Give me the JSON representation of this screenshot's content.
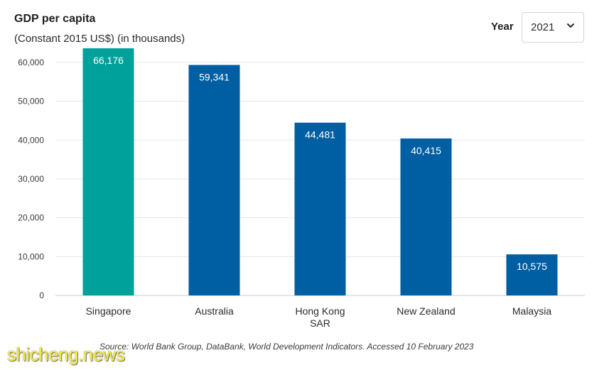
{
  "header": {
    "title": "GDP per capita",
    "subtitle": "(Constant 2015 US$) (in thousands)"
  },
  "year_filter": {
    "label": "Year",
    "selected": "2021"
  },
  "chart_data": {
    "type": "bar",
    "title": "GDP per capita",
    "subtitle": "(Constant 2015 US$) (in thousands)",
    "categories": [
      "Singapore",
      "Australia",
      "Hong Kong SAR",
      "New Zealand",
      "Malaysia"
    ],
    "category_lines": [
      [
        "Singapore"
      ],
      [
        "Australia"
      ],
      [
        "Hong Kong",
        "SAR"
      ],
      [
        "New Zealand"
      ],
      [
        "Malaysia"
      ]
    ],
    "values": [
      66176,
      59341,
      44481,
      40415,
      10575
    ],
    "value_labels": [
      "66,176",
      "59,341",
      "44,481",
      "40,415",
      "10,575"
    ],
    "bar_colors": [
      "#00a19a",
      "#005ea2",
      "#005ea2",
      "#005ea2",
      "#005ea2"
    ],
    "ylim": [
      0,
      64000
    ],
    "yticks": [
      0,
      10000,
      20000,
      30000,
      40000,
      50000,
      60000
    ],
    "ytick_labels": [
      "0",
      "10,000",
      "20,000",
      "30,000",
      "40,000",
      "50,000",
      "60,000"
    ],
    "grid": true,
    "xlabel": "",
    "ylabel": ""
  },
  "footer": {
    "source": "Source: World Bank Group, DataBank, World Development Indicators. Accessed 10 February 2023"
  },
  "watermark": {
    "text": "shicheng.news"
  },
  "colors": {
    "highlight_bar": "#00a19a",
    "bar": "#005ea2",
    "gridline": "#e6e6e6"
  }
}
